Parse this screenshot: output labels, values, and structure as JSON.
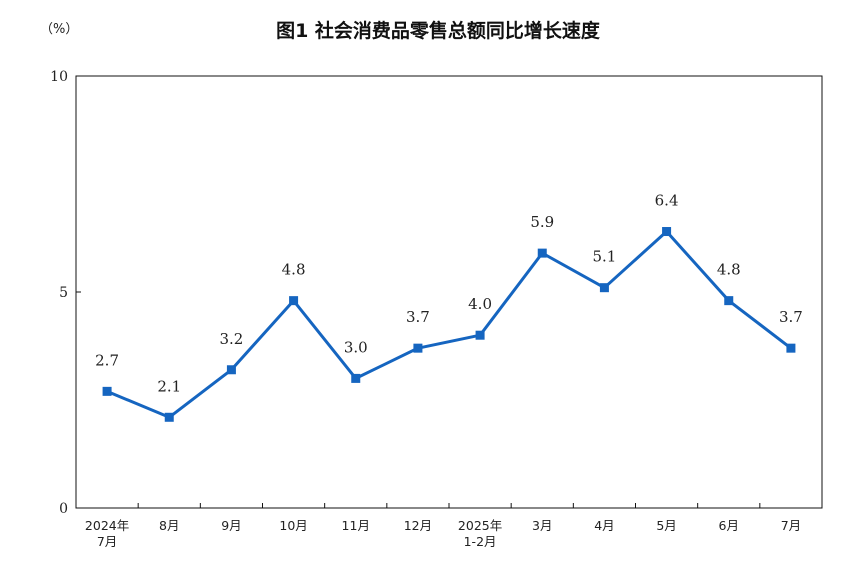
{
  "chart_data": {
    "type": "line",
    "title": "图1  社会消费品零售总额同比增长速度",
    "unit_label": "（%）",
    "ylim": [
      0,
      10
    ],
    "y_ticks": [
      "0",
      "5",
      "10"
    ],
    "grid": false,
    "legend": "none",
    "categories": [
      [
        "2024年",
        "7月"
      ],
      [
        "8月"
      ],
      [
        "9月"
      ],
      [
        "10月"
      ],
      [
        "11月"
      ],
      [
        "12月"
      ],
      [
        "2025年",
        "1-2月"
      ],
      [
        "3月"
      ],
      [
        "4月"
      ],
      [
        "5月"
      ],
      [
        "6月"
      ],
      [
        "7月"
      ]
    ],
    "series": [
      {
        "values": [
          2.7,
          2.1,
          3.2,
          4.8,
          3.0,
          3.7,
          4.0,
          5.9,
          5.1,
          6.4,
          4.8,
          3.7
        ],
        "labels": [
          "2.7",
          "2.1",
          "3.2",
          "4.8",
          "3.0",
          "3.7",
          "4.0",
          "5.9",
          "5.1",
          "6.4",
          "4.8",
          "3.7"
        ],
        "color": "#1565C0"
      }
    ]
  }
}
